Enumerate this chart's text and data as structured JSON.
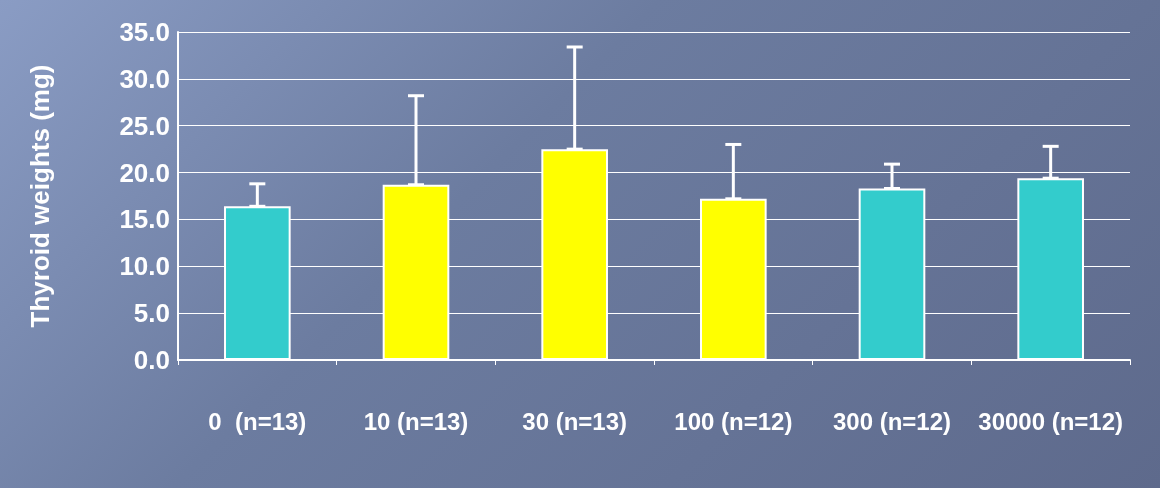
{
  "chart_data": {
    "type": "bar",
    "ylabel": "Thyroid weights (mg)",
    "categories": [
      "0  (n=13)",
      "10 (n=13)",
      "30 (n=13)",
      "100 (n=12)",
      "300 (n=12)",
      "30000 (n=12)"
    ],
    "values": [
      16.4,
      18.7,
      22.5,
      17.2,
      18.3,
      19.4
    ],
    "errors": [
      [
        16.4,
        18.8
      ],
      [
        18.7,
        28.2
      ],
      [
        22.5,
        33.4
      ],
      [
        17.2,
        23.0
      ],
      [
        18.3,
        20.9
      ],
      [
        19.4,
        22.8
      ]
    ],
    "colors": [
      "#33cccc",
      "#ffff00",
      "#ffff00",
      "#ffff00",
      "#33cccc",
      "#33cccc"
    ],
    "ylim": [
      0,
      35
    ],
    "yticks": [
      {
        "value": 0,
        "label": "0.0"
      },
      {
        "value": 5,
        "label": "5.0"
      },
      {
        "value": 10,
        "label": "10.0"
      },
      {
        "value": 15,
        "label": "15.0"
      },
      {
        "value": 20,
        "label": "20.0"
      },
      {
        "value": 25,
        "label": "25.0"
      },
      {
        "value": 30,
        "label": "30.0"
      },
      {
        "value": 35,
        "label": "35.0"
      }
    ],
    "grid": "y"
  }
}
